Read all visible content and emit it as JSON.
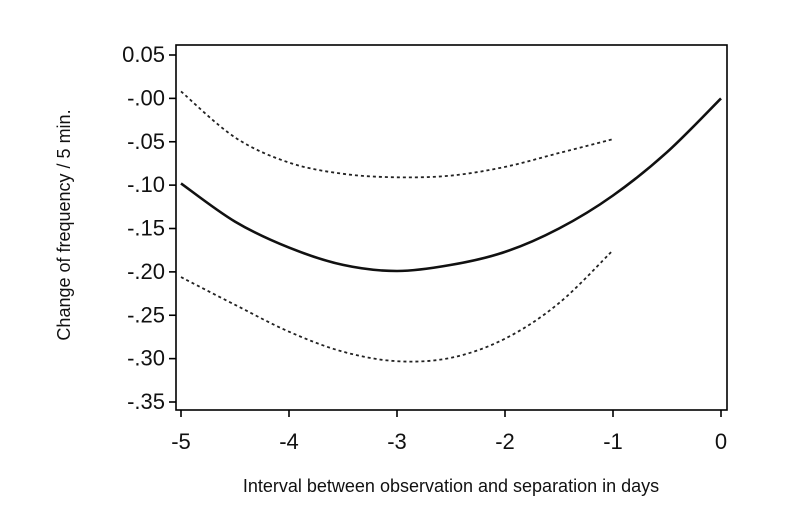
{
  "chart_data": {
    "type": "line",
    "title": "",
    "xlabel": "Interval between observation and separation in days",
    "ylabel": "Change of frequency / 5 min.",
    "xlim": [
      -5,
      0
    ],
    "ylim": [
      -0.35,
      0.05
    ],
    "x_ticks": [
      -5,
      -4,
      -3,
      -2,
      -1,
      0
    ],
    "x_tick_labels": [
      "-5",
      "-4",
      "-3",
      "-2",
      "-1",
      "0"
    ],
    "y_ticks": [
      0.05,
      0.0,
      -0.05,
      -0.1,
      -0.15,
      -0.2,
      -0.25,
      -0.3,
      -0.35
    ],
    "y_tick_labels": [
      "0.05",
      "-.00",
      "-.05",
      "-.10",
      "-.15",
      "-.20",
      "-.25",
      "-.30",
      "-.35"
    ],
    "grid": false,
    "legend": "none",
    "series": [
      {
        "style": "solid",
        "x": [
          -5,
          -4.5,
          -4,
          -3.5,
          -3,
          -2.5,
          -2,
          -1.5,
          -1,
          -0.5,
          0
        ],
        "values": [
          -0.098,
          -0.142,
          -0.172,
          -0.192,
          -0.199,
          -0.192,
          -0.177,
          -0.15,
          -0.112,
          -0.062,
          0.0
        ]
      },
      {
        "style": "dotted",
        "x": [
          -5,
          -4.5,
          -4,
          -3.5,
          -3,
          -2.5,
          -2,
          -1.5,
          -1
        ],
        "values": [
          0.008,
          -0.045,
          -0.074,
          -0.087,
          -0.091,
          -0.089,
          -0.079,
          -0.063,
          -0.047
        ]
      },
      {
        "style": "dotted",
        "x": [
          -5,
          -4.5,
          -4,
          -3.5,
          -3,
          -2.5,
          -2,
          -1.5,
          -1
        ],
        "values": [
          -0.206,
          -0.238,
          -0.269,
          -0.292,
          -0.303,
          -0.299,
          -0.277,
          -0.236,
          -0.175
        ]
      }
    ]
  }
}
